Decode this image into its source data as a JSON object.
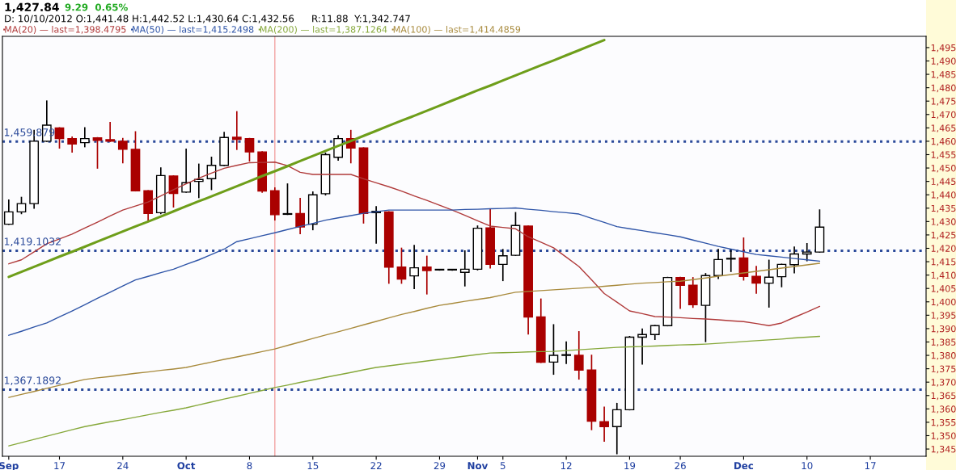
{
  "chart_data": {
    "type": "candlestick",
    "title": "1,427.84",
    "annotations": [
      "9.29  0.65%",
      "D: 10/10/2012 O:1,441.48 H:1,442.52 L:1,430.64 C:1,432.56",
      "R:11.88  Y:1,342.747"
    ],
    "categories": [
      "Sep",
      null,
      null,
      null,
      "17",
      null,
      null,
      null,
      null,
      "24",
      null,
      null,
      null,
      null,
      "Oct",
      null,
      null,
      null,
      null,
      "8",
      null,
      null,
      null,
      null,
      "15",
      null,
      null,
      null,
      null,
      "22",
      null,
      null,
      null,
      null,
      "29",
      null,
      null,
      "Nov",
      null,
      "5",
      null,
      null,
      null,
      null,
      "12",
      null,
      null,
      null,
      null,
      "19",
      null,
      null,
      null,
      "26",
      null,
      null,
      null,
      null,
      "Dec",
      null,
      null,
      null,
      null,
      "10",
      null,
      null,
      null,
      null,
      "17",
      null,
      null,
      null,
      null
    ],
    "series": [
      {
        "colors": [
          "#ffffff",
          "#ffffff",
          "#ffffff",
          "#ffffff",
          "#aa0000",
          "#aa0000",
          "#ffffff",
          "#aa0000",
          "#aa0000",
          "#aa0000",
          "#aa0000",
          "#aa0000",
          "#ffffff",
          "#aa0000",
          "#ffffff",
          "#ffffff",
          "#ffffff",
          "#ffffff",
          "#aa0000",
          "#aa0000",
          "#aa0000",
          "#aa0000",
          "#ffffff",
          "#aa0000",
          "#ffffff",
          "#ffffff",
          "#ffffff",
          "#aa0000",
          "#aa0000",
          "#ffffff",
          "#aa0000",
          "#aa0000",
          "#ffffff",
          "#aa0000",
          "#ffffff",
          "#ffffff",
          "#ffffff",
          "#ffffff",
          "#aa0000",
          "#ffffff",
          "#ffffff",
          "#aa0000",
          "#aa0000",
          "#ffffff",
          "#ffffff",
          "#aa0000",
          "#aa0000",
          "#aa0000",
          "#ffffff",
          "#ffffff",
          "#ffffff",
          "#ffffff",
          "#ffffff",
          "#aa0000",
          "#aa0000",
          "#ffffff",
          "#ffffff",
          "#ffffff",
          "#aa0000",
          "#aa0000",
          "#ffffff",
          "#ffffff",
          "#ffffff",
          "#ffffff",
          "#ffffff",
          null,
          null,
          null,
          null,
          null,
          null,
          null,
          null
        ],
        "ohlc": [
          [
            1429,
            1438,
            1429,
            1433.6
          ],
          [
            1433.6,
            1439,
            1433,
            1436.7
          ],
          [
            1436.7,
            1464,
            1435,
            1460
          ],
          [
            1460,
            1475,
            1460,
            1466
          ],
          [
            1465,
            1465,
            1457.5,
            1461
          ],
          [
            1461,
            1461.5,
            1456,
            1459
          ],
          [
            1459.5,
            1465,
            1458,
            1461
          ],
          [
            1461.3,
            1461.3,
            1450,
            1460.3
          ],
          [
            1460.6,
            1467,
            1460,
            1460
          ],
          [
            1460,
            1461,
            1452,
            1457
          ],
          [
            1457,
            1463.5,
            1441.5,
            1441.5
          ],
          [
            1441.5,
            1441.5,
            1430.5,
            1433
          ],
          [
            1433.3,
            1450,
            1433,
            1447.2
          ],
          [
            1447,
            1447,
            1435.5,
            1440.5
          ],
          [
            1441,
            1457,
            1441,
            1444.5
          ],
          [
            1445,
            1451.4,
            1439,
            1445.7
          ],
          [
            1446,
            1454,
            1442,
            1451
          ],
          [
            1451,
            1463.3,
            1451,
            1461.4
          ],
          [
            1461.5,
            1471,
            1457,
            1460.7
          ],
          [
            1461,
            1461,
            1452.7,
            1456
          ],
          [
            1456,
            1456,
            1441,
            1441.4
          ],
          [
            1441.48,
            1442.52,
            1430.64,
            1432.56
          ],
          [
            1432.7,
            1444,
            1432.7,
            1432.7
          ],
          [
            1433,
            1438.6,
            1425.5,
            1428
          ],
          [
            1429,
            1441,
            1427,
            1440
          ],
          [
            1440.4,
            1455.5,
            1440,
            1455
          ],
          [
            1454,
            1462,
            1453,
            1461
          ],
          [
            1461,
            1464,
            1452,
            1457.5
          ],
          [
            1457.5,
            1457.5,
            1429.5,
            1433
          ],
          [
            1433.3,
            1435.5,
            1422,
            1433.8
          ],
          [
            1433.6,
            1433.6,
            1407,
            1413
          ],
          [
            1413,
            1420,
            1407,
            1408.5
          ],
          [
            1409.7,
            1421,
            1405,
            1412.7
          ],
          [
            1413,
            1417,
            1403,
            1411.7
          ],
          [
            1411.9,
            1411.9,
            1411.9,
            1411.9
          ],
          [
            1411.9,
            1411.9,
            1411.9,
            1411.9
          ],
          [
            1411,
            1419,
            1406,
            1412.2
          ],
          [
            1412.2,
            1428.3,
            1412,
            1427.5
          ],
          [
            1427.6,
            1434.5,
            1412.7,
            1414
          ],
          [
            1414,
            1419.5,
            1408,
            1417.2
          ],
          [
            1417.4,
            1433.3,
            1417.4,
            1428.5
          ],
          [
            1428.3,
            1428.3,
            1388,
            1394.3
          ],
          [
            1394.4,
            1401,
            1377.4,
            1377.4
          ],
          [
            1377.5,
            1391.4,
            1373,
            1380
          ],
          [
            1380,
            1385,
            1377,
            1380
          ],
          [
            1380,
            1388.8,
            1371.2,
            1374.5
          ],
          [
            1374.5,
            1380,
            1352.3,
            1355.4
          ],
          [
            1355.2,
            1360.6,
            1348,
            1353.4
          ],
          [
            1353.4,
            1362,
            1343.3,
            1359.7
          ],
          [
            1359.7,
            1387,
            1359.7,
            1386.8
          ],
          [
            1386.8,
            1389.8,
            1376.8,
            1387.8
          ],
          [
            1387.8,
            1391.1,
            1386,
            1391.1
          ],
          [
            1391.1,
            1409.1,
            1391.1,
            1409.1
          ],
          [
            1409.1,
            1409.1,
            1397.6,
            1406.2
          ],
          [
            1406.2,
            1409,
            1398,
            1398.9
          ],
          [
            1398.7,
            1410.5,
            1385.2,
            1409.8
          ],
          [
            1409.8,
            1419.5,
            1408.8,
            1415.8
          ],
          [
            1416,
            1419.5,
            1411.4,
            1416
          ],
          [
            1416.4,
            1423.8,
            1408.2,
            1409.5
          ],
          [
            1409.5,
            1413.2,
            1403.3,
            1407
          ],
          [
            1407,
            1415.5,
            1398.1,
            1409.2
          ],
          [
            1409.4,
            1414,
            1405.7,
            1414
          ],
          [
            1413.9,
            1420.4,
            1410.9,
            1417.9
          ],
          [
            1417.9,
            1421.7,
            1415.4,
            1418.6
          ],
          [
            1418.6,
            1434.3,
            1418.6,
            1427.9
          ],
          null,
          null,
          null,
          null,
          null,
          null,
          null,
          null
        ]
      },
      {
        "type": "line",
        "name": "MA(20) — last=1,398.4795",
        "color": "#b03a3a",
        "values": [
          1414.2,
          1415.7,
          1418.7,
          1421.7,
          1423.5,
          1425.3,
          1427.6,
          1429.8,
          1432.1,
          1434.3,
          1435.8,
          1437.3,
          1439.6,
          1441.9,
          1444.1,
          1446.2,
          1448.1,
          1449.9,
          1451.0,
          1452.0,
          1452.1,
          1452.2,
          1450.9,
          1448.4,
          1447.6,
          1447.6,
          1447.6,
          1447.6,
          1446.0,
          1444.5,
          1443.0,
          1441.4,
          1439.6,
          1437.9,
          1436.1,
          1434.3,
          1432.3,
          1430.3,
          1428.3,
          1427.8,
          1427.3,
          1424.3,
          1422.3,
          1420.2,
          1416.7,
          1413.2,
          1408.2,
          1403.1,
          1399.9,
          1396.6,
          1395.6,
          1394.5,
          1394.3,
          1394.1,
          1393.8,
          1393.6,
          1393.3,
          1392.9,
          1392.6,
          1391.9,
          1391.1,
          1392.1,
          1394.2,
          1396.2,
          1398.3,
          null,
          null,
          null,
          null,
          null,
          null,
          null,
          null
        ]
      },
      {
        "type": "line",
        "name": "MA(50) — last=1,415.2498",
        "color": "#2f55a8",
        "values": [
          1387.5,
          1389.0,
          1390.6,
          1392.1,
          1394.4,
          1396.6,
          1398.9,
          1401.3,
          1403.6,
          1405.9,
          1408.2,
          1409.5,
          1410.9,
          1412.2,
          1414.0,
          1415.7,
          1417.7,
          1419.7,
          1422.5,
          1423.6,
          1424.7,
          1425.8,
          1427.0,
          1428.2,
          1429.3,
          1430.5,
          1431.4,
          1432.2,
          1433.1,
          1433.7,
          1434.3,
          1434.3,
          1434.3,
          1434.3,
          1434.3,
          1434.3,
          1434.5,
          1434.6,
          1434.8,
          1434.9,
          1435.1,
          1434.6,
          1434.2,
          1433.7,
          1433.3,
          1432.8,
          1431.2,
          1429.7,
          1428.1,
          1427.3,
          1426.6,
          1425.8,
          1425.1,
          1424.3,
          1423.1,
          1421.9,
          1420.7,
          1419.7,
          1418.7,
          1417.7,
          1417.2,
          1416.7,
          1416.2,
          1415.7,
          1415.2,
          null,
          null,
          null,
          null,
          null,
          null,
          null,
          null
        ]
      },
      {
        "type": "line",
        "name": "MA(200) — last=1,387.1264",
        "color": "#86a83a",
        "values": [
          1346.2,
          1347.4,
          1348.6,
          1349.8,
          1351.0,
          1352.2,
          1353.4,
          1354.3,
          1355.2,
          1356.0,
          1356.9,
          1357.8,
          1358.7,
          1359.5,
          1360.4,
          1361.5,
          1362.6,
          1363.7,
          1364.7,
          1365.8,
          1366.9,
          1368.0,
          1368.9,
          1369.9,
          1370.8,
          1371.8,
          1372.7,
          1373.6,
          1374.6,
          1375.5,
          1376.1,
          1376.7,
          1377.3,
          1377.9,
          1378.5,
          1379.1,
          1379.7,
          1380.3,
          1380.9,
          1381.0,
          1381.1,
          1381.3,
          1381.4,
          1381.5,
          1381.8,
          1382.1,
          1382.4,
          1382.7,
          1383.0,
          1383.2,
          1383.3,
          1383.5,
          1383.7,
          1383.9,
          1384.0,
          1384.2,
          1384.5,
          1384.8,
          1385.2,
          1385.5,
          1385.8,
          1386.1,
          1386.5,
          1386.8,
          1387.1,
          null,
          null,
          null,
          null,
          null,
          null,
          null,
          null
        ]
      },
      {
        "type": "line",
        "name": "MA(100) — last=1,414.4859",
        "color": "#a88a3c",
        "values": [
          1364.3,
          1365.4,
          1366.5,
          1367.7,
          1368.8,
          1369.9,
          1371.0,
          1371.6,
          1372.1,
          1372.7,
          1373.3,
          1373.8,
          1374.4,
          1374.9,
          1375.5,
          1376.5,
          1377.5,
          1378.5,
          1379.4,
          1380.4,
          1381.4,
          1382.4,
          1383.7,
          1385.0,
          1386.3,
          1387.6,
          1388.8,
          1390.1,
          1391.4,
          1392.7,
          1394.0,
          1395.3,
          1396.4,
          1397.6,
          1398.7,
          1399.4,
          1400.2,
          1400.9,
          1401.6,
          1402.6,
          1403.6,
          1403.9,
          1404.2,
          1404.5,
          1404.8,
          1405.1,
          1405.4,
          1405.8,
          1406.2,
          1406.6,
          1407.0,
          1407.2,
          1407.5,
          1407.7,
          1408.3,
          1408.9,
          1409.6,
          1410.2,
          1410.8,
          1411.4,
          1412.0,
          1412.6,
          1413.2,
          1413.8,
          1414.4,
          null,
          null,
          null,
          null,
          null,
          null,
          null,
          null
        ]
      },
      {
        "type": "line",
        "color": "#6e9e1a",
        "values": [
          1409.3,
          1411.2,
          1413.1,
          1415.0,
          1416.9,
          1418.7,
          1420.6,
          1422.5,
          1424.4,
          1426.3,
          1428.2,
          1430.0,
          1431.9,
          1433.8,
          1435.7,
          1437.6,
          1439.4,
          1441.3,
          1443.2,
          1445.1,
          1447.0,
          1448.8,
          1450.7,
          1452.6,
          1454.5,
          1456.4,
          1458.3,
          1460.1,
          1462.0,
          1463.9,
          1465.8,
          1467.7,
          1469.5,
          1471.4,
          1473.3,
          1475.2,
          1477.1,
          1479.0,
          1480.8,
          1482.7,
          1484.6,
          1486.5,
          1488.4,
          1490.2,
          1492.1,
          1494.0,
          1495.9,
          1497.8,
          null,
          null,
          null,
          null,
          null,
          null,
          null,
          null,
          null,
          null,
          null,
          null,
          null,
          null,
          null,
          null,
          null,
          null,
          null,
          null,
          null,
          null,
          null,
          null,
          null
        ]
      }
    ],
    "ref_lines": [
      {
        "axis": "y",
        "value": 1459.879,
        "label": "1,459.879",
        "color": "#2b4a9a",
        "line_style": "dotted"
      },
      {
        "axis": "y",
        "value": 1419.1032,
        "label": "1,419.1032",
        "color": "#2b4a9a",
        "line_style": "dotted"
      },
      {
        "axis": "y",
        "value": 1367.1892,
        "label": "1,367.1892",
        "color": "#2b4a9a",
        "line_style": "dotted"
      }
    ],
    "ylim": [
      1342.3,
      1499.2
    ],
    "yticks": [
      {
        "value": 1345,
        "label": "1,345"
      },
      {
        "value": 1350,
        "label": "1,350"
      },
      {
        "value": 1355,
        "label": "1,355"
      },
      {
        "value": 1360,
        "label": "1,360"
      },
      {
        "value": 1365,
        "label": "1,365"
      },
      {
        "value": 1370,
        "label": "1,370"
      },
      {
        "value": 1375,
        "label": "1,375"
      },
      {
        "value": 1380,
        "label": "1,380"
      },
      {
        "value": 1385,
        "label": "1,385"
      },
      {
        "value": 1390,
        "label": "1,390"
      },
      {
        "value": 1395,
        "label": "1,395"
      },
      {
        "value": 1400,
        "label": "1,400"
      },
      {
        "value": 1405,
        "label": "1,405"
      },
      {
        "value": 1410,
        "label": "1,410"
      },
      {
        "value": 1415,
        "label": "1,415"
      },
      {
        "value": 1420,
        "label": "1,420"
      },
      {
        "value": 1425,
        "label": "1,425"
      },
      {
        "value": 1430,
        "label": "1,430"
      },
      {
        "value": 1435,
        "label": "1,435"
      },
      {
        "value": 1440,
        "label": "1,440"
      },
      {
        "value": 1445,
        "label": "1,445"
      },
      {
        "value": 1450,
        "label": "1,450"
      },
      {
        "value": 1455,
        "label": "1,455"
      },
      {
        "value": 1460,
        "label": "1,460"
      },
      {
        "value": 1465,
        "label": "1,465"
      },
      {
        "value": 1470,
        "label": "1,470"
      },
      {
        "value": 1475,
        "label": "1,475"
      },
      {
        "value": 1480,
        "label": "1,480"
      },
      {
        "value": 1485,
        "label": "1,485"
      },
      {
        "value": 1490,
        "label": "1,490"
      },
      {
        "value": 1495,
        "label": "1,495"
      }
    ],
    "grid": false,
    "legend": "top left"
  }
}
